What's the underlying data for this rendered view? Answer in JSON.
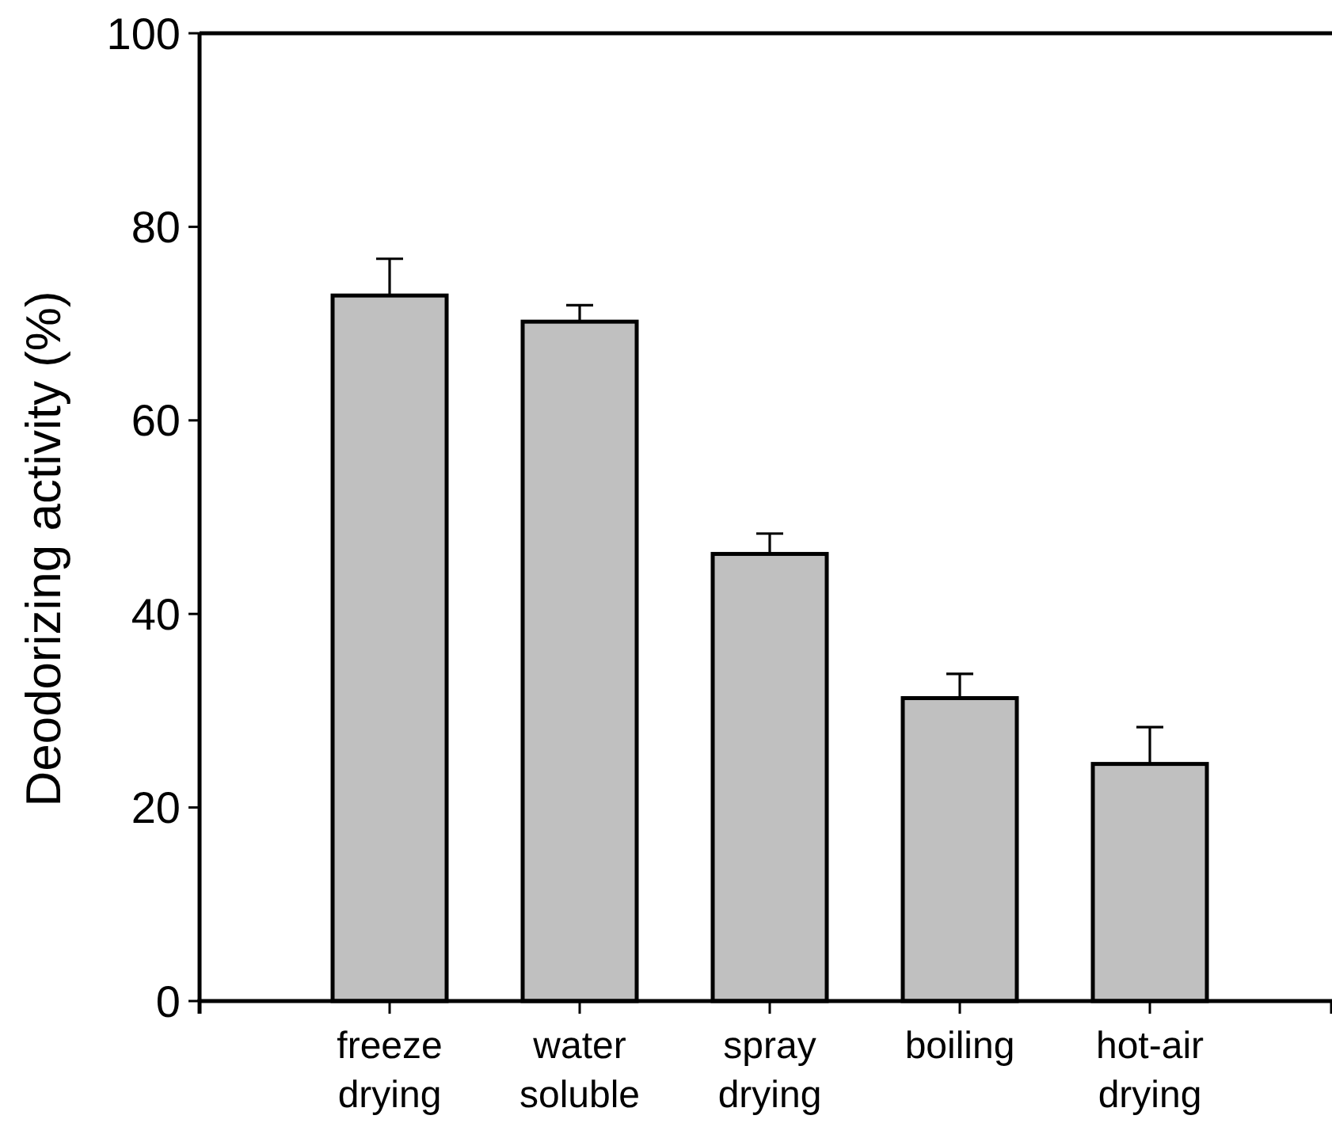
{
  "chart_data": {
    "type": "bar",
    "ylabel": "Deodorizing activity (%)",
    "categories": [
      "freeze drying",
      "water soluble",
      "spray drying",
      "boiling",
      "hot-air drying"
    ],
    "values": [
      72.9,
      70.2,
      46.2,
      31.3,
      24.5
    ],
    "errors": [
      [
        72.9,
        76.7
      ],
      [
        70.2,
        71.9
      ],
      [
        46.2,
        48.3
      ],
      [
        31.3,
        33.8
      ],
      [
        24.5,
        28.3
      ]
    ],
    "color": "#c0c0c0",
    "ylim": [
      0,
      100
    ],
    "yticks": [
      0,
      20,
      40,
      60,
      80,
      100
    ]
  }
}
